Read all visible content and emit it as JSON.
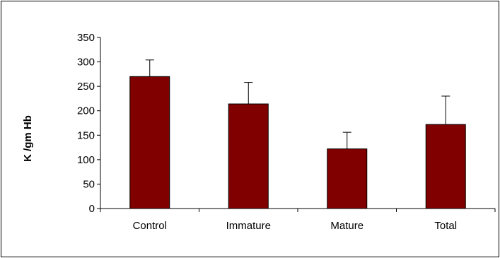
{
  "chart_data": {
    "type": "bar",
    "categories": [
      "Control",
      "Immature",
      "Mature",
      "Total"
    ],
    "values": [
      270,
      214,
      122,
      172
    ],
    "errors": [
      34,
      44,
      34,
      58
    ],
    "ylabel": "K /gm  Hb",
    "xlabel": "",
    "ylim": [
      0,
      350
    ],
    "yticks": [
      0,
      50,
      100,
      150,
      200,
      250,
      300,
      350
    ],
    "grid": false,
    "legend": "none",
    "bar_color": "#800000"
  }
}
